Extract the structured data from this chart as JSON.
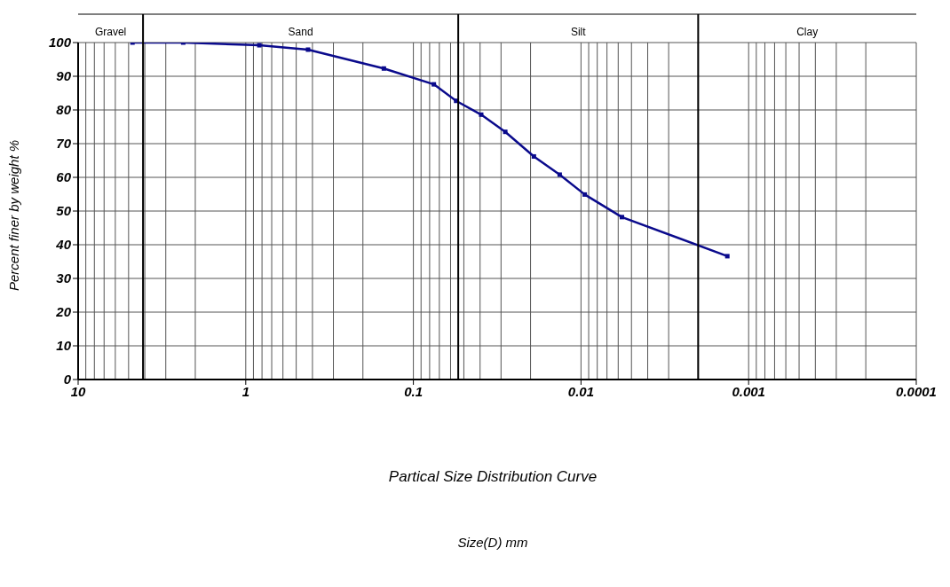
{
  "chart_data": {
    "type": "line",
    "title": "Partical Size Distribution Curve",
    "annotations": [
      "Gravel",
      "Sand",
      "Silt",
      "Clay",
      "Size(D) mm"
    ],
    "ylabel": "Percent finer by weight %",
    "x": [
      4.74,
      2.36,
      0.83,
      0.425,
      0.15,
      0.0755,
      0.0556,
      0.0394,
      0.0283,
      0.0191,
      0.0134,
      0.0095,
      0.0057,
      0.00134
    ],
    "series": [
      {
        "color": "#0a0a8c",
        "values": [
          100,
          100,
          99.2,
          97.9,
          92.3,
          87.6,
          82.7,
          78.6,
          73.5,
          66.2,
          60.8,
          54.9,
          48.2,
          36.6
        ]
      }
    ],
    "log": "x",
    "xlim": [
      10,
      0.0001
    ],
    "xticks": [
      10,
      1,
      0.1,
      0.01,
      0.001,
      0.0001
    ],
    "ylim": [
      0,
      100
    ],
    "yticks": [
      0,
      10,
      20,
      30,
      40,
      50,
      60,
      70,
      80,
      90,
      100
    ],
    "grid": true,
    "marker": "square",
    "line_style": "solid",
    "legend": false,
    "ref_lines": [
      {
        "axis": "x",
        "value": 4.1,
        "color": "#000000"
      },
      {
        "axis": "x",
        "value": 0.054,
        "color": "#000000"
      },
      {
        "axis": "x",
        "value": 0.002,
        "color": "#000000"
      }
    ]
  }
}
